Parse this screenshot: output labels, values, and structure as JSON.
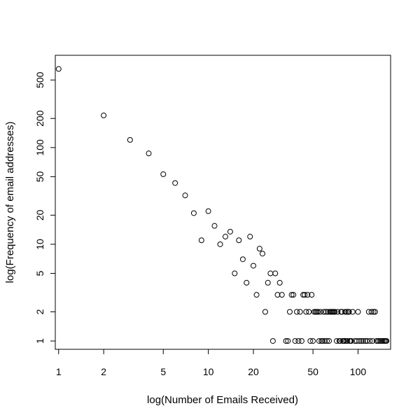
{
  "chart_data": {
    "type": "scatter",
    "xlabel": "log(Number of Emails Received)",
    "ylabel": "log(Frequency of email addresses)",
    "x_scale": "log",
    "y_scale": "log",
    "xlim": [
      0.95,
      165
    ],
    "ylim": [
      0.82,
      900
    ],
    "x_ticks": [
      {
        "value": 1,
        "label": "1"
      },
      {
        "value": 2,
        "label": "2"
      },
      {
        "value": 5,
        "label": "5"
      },
      {
        "value": 10,
        "label": "10"
      },
      {
        "value": 20,
        "label": "20"
      },
      {
        "value": 50,
        "label": "50"
      },
      {
        "value": 100,
        "label": "100"
      }
    ],
    "y_ticks": [
      {
        "value": 1,
        "label": "1"
      },
      {
        "value": 2,
        "label": "2"
      },
      {
        "value": 5,
        "label": "5"
      },
      {
        "value": 10,
        "label": "10"
      },
      {
        "value": 20,
        "label": "20"
      },
      {
        "value": 50,
        "label": "50"
      },
      {
        "value": 100,
        "label": "100"
      },
      {
        "value": 200,
        "label": "200"
      },
      {
        "value": 500,
        "label": "500"
      }
    ],
    "grid": false,
    "legend": "none",
    "marker": "open-circle",
    "marker_color": "#000000",
    "points": [
      [
        1,
        650
      ],
      [
        2,
        215
      ],
      [
        3,
        120
      ],
      [
        4,
        87
      ],
      [
        5,
        53
      ],
      [
        6,
        43
      ],
      [
        7,
        32
      ],
      [
        8,
        21
      ],
      [
        9,
        11
      ],
      [
        10,
        22
      ],
      [
        11,
        15.5
      ],
      [
        12,
        10
      ],
      [
        13,
        12
      ],
      [
        14,
        13.5
      ],
      [
        15,
        5
      ],
      [
        16,
        11
      ],
      [
        17,
        7
      ],
      [
        18,
        4
      ],
      [
        19,
        12
      ],
      [
        20,
        6
      ],
      [
        21,
        3
      ],
      [
        22,
        9
      ],
      [
        23,
        8
      ],
      [
        24,
        2
      ],
      [
        25,
        4
      ],
      [
        26,
        5
      ],
      [
        27,
        1
      ],
      [
        28,
        5
      ],
      [
        29,
        3
      ],
      [
        30,
        4
      ],
      [
        31,
        3
      ],
      [
        33,
        1
      ],
      [
        34,
        1
      ],
      [
        35,
        2
      ],
      [
        36,
        3
      ],
      [
        37,
        3
      ],
      [
        38,
        1
      ],
      [
        39,
        2
      ],
      [
        40,
        1
      ],
      [
        41,
        2
      ],
      [
        42,
        1
      ],
      [
        43,
        3
      ],
      [
        44,
        3
      ],
      [
        45,
        2
      ],
      [
        46,
        3
      ],
      [
        47,
        2
      ],
      [
        48,
        1
      ],
      [
        49,
        3
      ],
      [
        50,
        1
      ],
      [
        51,
        2
      ],
      [
        52,
        2
      ],
      [
        53,
        2
      ],
      [
        54,
        2
      ],
      [
        55,
        1
      ],
      [
        56,
        2
      ],
      [
        57,
        1
      ],
      [
        58,
        1
      ],
      [
        59,
        2
      ],
      [
        60,
        1
      ],
      [
        61,
        2
      ],
      [
        62,
        1
      ],
      [
        63,
        2
      ],
      [
        64,
        1
      ],
      [
        65,
        2
      ],
      [
        66,
        2
      ],
      [
        67,
        2
      ],
      [
        68,
        2
      ],
      [
        69,
        2
      ],
      [
        70,
        2
      ],
      [
        72,
        1
      ],
      [
        73,
        2
      ],
      [
        75,
        1
      ],
      [
        76,
        1
      ],
      [
        77,
        2
      ],
      [
        78,
        2
      ],
      [
        79,
        1
      ],
      [
        80,
        1
      ],
      [
        81,
        1
      ],
      [
        82,
        2
      ],
      [
        83,
        1
      ],
      [
        84,
        2
      ],
      [
        85,
        1
      ],
      [
        86,
        2
      ],
      [
        87,
        2
      ],
      [
        88,
        1
      ],
      [
        89,
        1
      ],
      [
        90,
        1
      ],
      [
        92,
        2
      ],
      [
        95,
        1
      ],
      [
        98,
        1
      ],
      [
        100,
        2
      ],
      [
        102,
        1
      ],
      [
        105,
        1
      ],
      [
        108,
        1
      ],
      [
        112,
        1
      ],
      [
        115,
        1
      ],
      [
        118,
        2
      ],
      [
        120,
        1
      ],
      [
        123,
        2
      ],
      [
        125,
        1
      ],
      [
        127,
        2
      ],
      [
        130,
        2
      ],
      [
        133,
        1
      ],
      [
        136,
        1
      ],
      [
        139,
        1
      ],
      [
        142,
        1
      ],
      [
        145,
        1
      ],
      [
        148,
        1
      ],
      [
        151,
        1
      ],
      [
        153,
        1
      ],
      [
        155,
        1
      ]
    ]
  }
}
